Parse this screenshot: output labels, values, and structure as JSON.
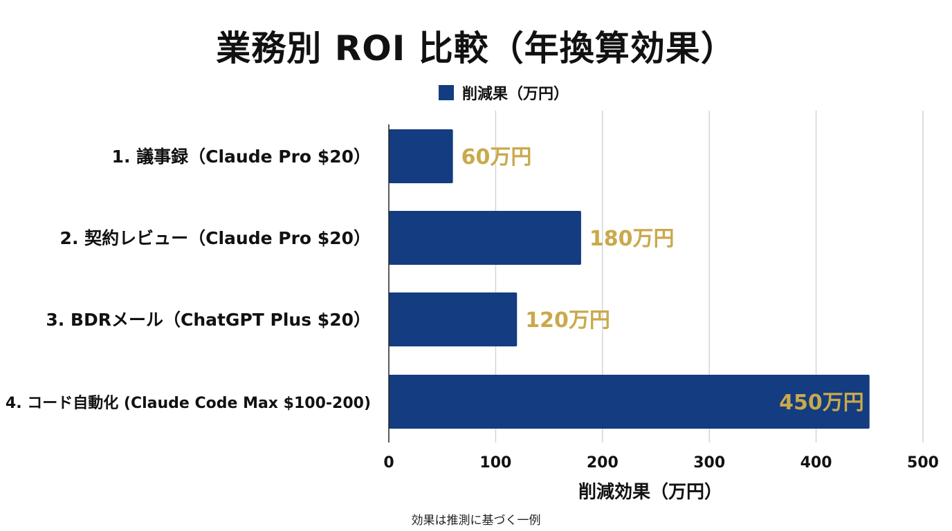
{
  "chart_data": {
    "type": "bar",
    "orientation": "horizontal",
    "title": "業務別 ROI 比較（年換算効果）",
    "categories": [
      "1. 議事録（Claude Pro $20）",
      "2. 契約レビュー（Claude Pro $20）",
      "3. BDRメール（ChatGPT Plus $20）",
      "4. コード自動化 (Claude Code Max $100-200)"
    ],
    "series": [
      {
        "name": "削減果（万円）",
        "values": [
          60,
          180,
          120,
          450
        ],
        "value_labels": [
          "60万円",
          "180万円",
          "120万円",
          "450万円"
        ],
        "color": "#143c80"
      }
    ],
    "xlabel": "削減効果（万円）",
    "xlim": [
      0,
      500
    ],
    "x_ticks": [
      0,
      100,
      200,
      300,
      400,
      500
    ],
    "grid": true,
    "legend_position": "top",
    "value_label_color": "#c9a94b",
    "footnote": "効果は推測に基づく一例"
  }
}
